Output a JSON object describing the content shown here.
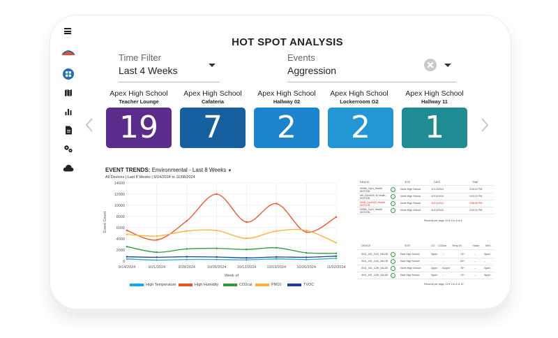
{
  "page_title": "HOT SPOT ANALYSIS",
  "filters": {
    "time_label": "Time Filter",
    "time_value": "Last 4 Weeks",
    "events_label": "Events",
    "events_value": "Aggression"
  },
  "cards": [
    {
      "site": "Apex High School",
      "location": "Teacher Lounge",
      "count": "19",
      "color": "#5a2d8c"
    },
    {
      "site": "Apex High School",
      "location": "Cafateria",
      "count": "7",
      "color": "#1660a0"
    },
    {
      "site": "Apex High School",
      "location": "Hallway 02",
      "count": "2",
      "color": "#1c84cc"
    },
    {
      "site": "Apex High School",
      "location": "Lockerroom G2",
      "count": "2",
      "color": "#2297d3"
    },
    {
      "site": "Apex High School",
      "location": "Hallway 11",
      "count": "1",
      "color": "#1f8b93"
    }
  ],
  "trends": {
    "label": "EVENT TRENDS:",
    "selected": "Environmental - Last 8 Weeks",
    "subtitle": "All Devices | Last 8 Weeks | 9/14/2024 to 11/08/2024"
  },
  "chart_data": {
    "type": "line",
    "xlabel": "Week of",
    "ylabel": "Event Count",
    "ylim": [
      0,
      14000
    ],
    "yticks": [
      "0",
      "2000",
      "4000",
      "6000",
      "8000",
      "10000",
      "12000",
      "14000"
    ],
    "x": [
      "9/14/2024",
      "9/21/2024",
      "9/28/2024",
      "10/05/2024",
      "10/12/2024",
      "10/19/2024",
      "10/26/2024",
      "11/02/2024"
    ],
    "series": [
      {
        "name": "High Temperature",
        "color": "#1aa7e8",
        "values": [
          400,
          200,
          300,
          300,
          250,
          400,
          300,
          500
        ]
      },
      {
        "name": "High Humidity",
        "color": "#f04e23",
        "values": [
          5500,
          3800,
          7200,
          12000,
          7000,
          10300,
          5200,
          7900
        ]
      },
      {
        "name": "CO2cal",
        "color": "#2e9a3e",
        "values": [
          2600,
          1600,
          2200,
          2300,
          2100,
          2400,
          1500,
          1400
        ]
      },
      {
        "name": "PM10",
        "color": "#f9b233",
        "values": [
          4800,
          4500,
          5400,
          5500,
          4100,
          5400,
          5500,
          3300
        ]
      },
      {
        "name": "TVOC",
        "color": "#1f3f8f",
        "values": [
          800,
          700,
          800,
          750,
          600,
          750,
          700,
          900
        ]
      }
    ]
  },
  "table1": {
    "headers": [
      "DEVICE",
      "SITE",
      "DATE",
      "TIME"
    ],
    "rows": [
      {
        "device": "9098h_Gym_Health MOTION",
        "site": "North High School",
        "date": "11/13/2024",
        "time": "3:03:31 PM",
        "alert": false
      },
      {
        "device": "4fh_Gym025_N Health MOTION",
        "site": "North High School",
        "date": "11/13/2024",
        "time": "3:03:31 PM",
        "alert": false
      },
      {
        "device": "4098_Gym025_Health MOTION",
        "site": "North High School",
        "date": "11/13/2024",
        "time": "3:58:50 PM",
        "alert": true
      },
      {
        "device": "9098h_Gym_Health MOTION",
        "site": "North High School",
        "date": "11/13/2024",
        "time": "3:03:31 PM",
        "alert": false
      }
    ],
    "footer": "Records per page:   10  ▾   1 to 4 of 4"
  },
  "table2": {
    "headers": [
      "DEVICE",
      "SITE",
      "CO",
      "CO2cal",
      "Temp (F)",
      "Noise",
      "NH3"
    ],
    "rows": [
      {
        "device": "3011_001_11W_VALDE",
        "site": "East High School",
        "co": "3ppm",
        "co2": "--",
        "temp": "74+",
        "noise": "--",
        "nh3": "0ppm"
      },
      {
        "device": "3011_001_11W_VALDE",
        "site": "East High School",
        "co": "--",
        "co2": "--",
        "temp": "63+",
        "noise": "--",
        "nh3": "--"
      },
      {
        "device": "3011_001_12W_VALDE",
        "site": "North High School",
        "co": "3ppm",
        "co2": "61ppm",
        "temp": "76+",
        "noise": "--",
        "nh3": "0ppm"
      },
      {
        "device": "3011_001_12W_VALDE",
        "site": "East High School",
        "co": "3ppm",
        "co2": "--",
        "temp": "74+",
        "noise": "--",
        "nh3": "0ppm"
      }
    ],
    "footer": "Records per page:   10  ▾   1 to 4 of 10"
  }
}
